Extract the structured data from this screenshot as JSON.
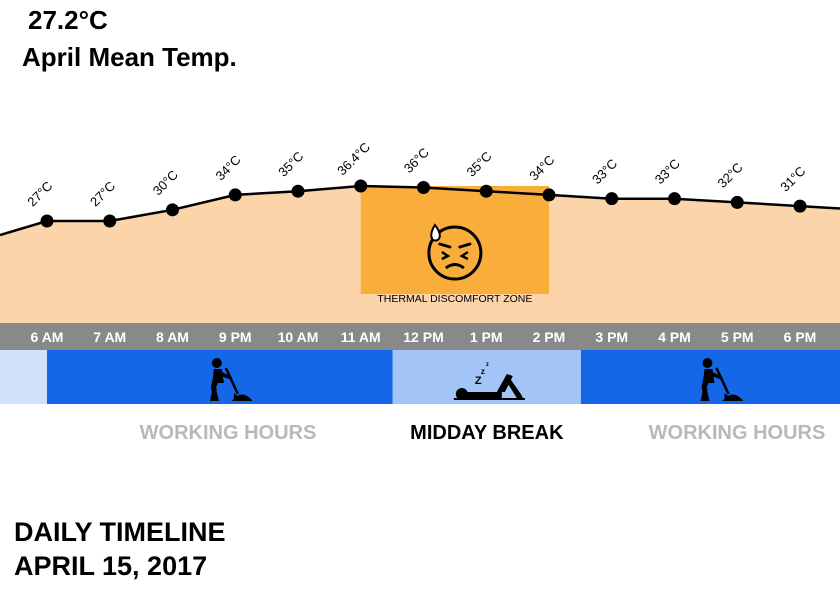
{
  "header": {
    "mean_temp": "27.2°C",
    "mean_label": "April Mean Temp."
  },
  "footer": {
    "line1": "DAILY TIMELINE",
    "line2": "APRIL 15, 2017"
  },
  "chart_data": {
    "type": "area",
    "categories": [
      "6 AM",
      "7 AM",
      "8 AM",
      "9 PM",
      "10 AM",
      "11 AM",
      "12 PM",
      "1 PM",
      "2 PM",
      "3 PM",
      "4 PM",
      "5 PM",
      "6 PM"
    ],
    "values": [
      27,
      27,
      30,
      34,
      35,
      36.4,
      36,
      35,
      34,
      33,
      33,
      32,
      31
    ],
    "value_labels": [
      "27°C",
      "27°C",
      "30°C",
      "34°C",
      "35°C",
      "36.4°C",
      "36°C",
      "35°C",
      "34°C",
      "33°C",
      "33°C",
      "32°C",
      "31°C"
    ],
    "ylim": [
      0,
      38
    ],
    "highlight": {
      "label": "THERMAL DISCOMFORT ZONE",
      "from_category": "11 AM",
      "to_category": "2 PM",
      "icon": "hot-sweating-face-icon"
    },
    "segments": [
      {
        "kind": "work",
        "label": "WORKING HOURS",
        "icon": "worker-digging-icon"
      },
      {
        "kind": "break",
        "label": "MIDDAY BREAK",
        "icon": "sleeping-person-icon"
      },
      {
        "kind": "work",
        "label": "WORKING HOURS",
        "icon": "worker-digging-icon"
      }
    ],
    "colors": {
      "area": "#fcd4a9",
      "highlight": "#f9ae3c",
      "line": "#000000",
      "hour_bar": "#898989",
      "hour_text": "#ffffff",
      "work": "#1467e6",
      "break": "#a3c4f7",
      "pre_work": "#d0e1fb",
      "work_label": "#b9b9b9",
      "break_label": "#000000"
    }
  }
}
